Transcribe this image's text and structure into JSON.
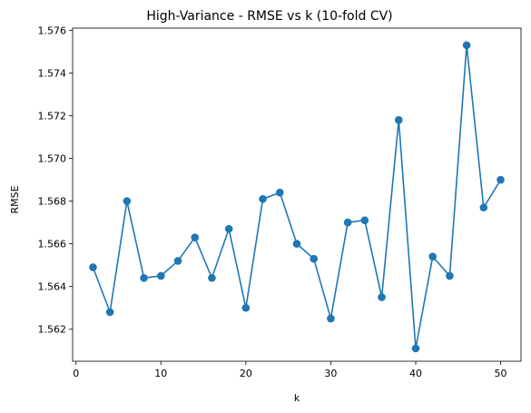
{
  "chart_data": {
    "type": "line",
    "title": "High-Variance - RMSE vs k (10-fold CV)",
    "xlabel": "k",
    "ylabel": "RMSE",
    "xlim": [
      -0.4,
      52.4
    ],
    "ylim": [
      1.5605,
      1.5761
    ],
    "xticks": [
      0,
      10,
      20,
      30,
      40,
      50
    ],
    "yticks": [
      1.562,
      1.564,
      1.566,
      1.568,
      1.57,
      1.572,
      1.574,
      1.576
    ],
    "ytick_labels": [
      "1.562",
      "1.564",
      "1.566",
      "1.568",
      "1.570",
      "1.572",
      "1.574",
      "1.576"
    ],
    "grid": false,
    "marker": "circle",
    "color": "#1f77b4",
    "series": [
      {
        "x": [
          2,
          4,
          6,
          8,
          10,
          12,
          14,
          16,
          18,
          20,
          22,
          24,
          26,
          28,
          30,
          32,
          34,
          36,
          38,
          40,
          42,
          44,
          46,
          48,
          50
        ],
        "y": [
          1.5649,
          1.5628,
          1.568,
          1.5644,
          1.5645,
          1.5652,
          1.5663,
          1.5644,
          1.5667,
          1.563,
          1.5681,
          1.5684,
          1.566,
          1.5653,
          1.5625,
          1.567,
          1.5671,
          1.5635,
          1.5718,
          1.5611,
          1.5654,
          1.5645,
          1.5753,
          1.5677,
          1.569
        ]
      }
    ]
  }
}
